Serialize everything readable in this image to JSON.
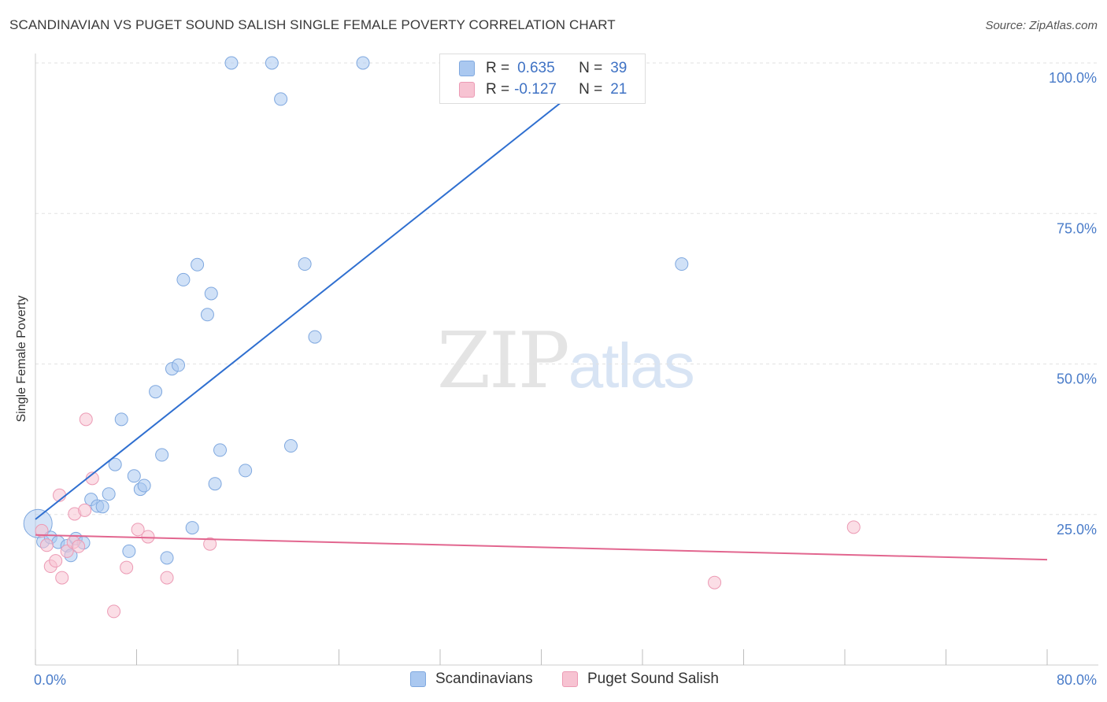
{
  "header": {
    "title": "SCANDINAVIAN VS PUGET SOUND SALISH SINGLE FEMALE POVERTY CORRELATION CHART",
    "source": "Source: ZipAtlas.com"
  },
  "watermark": {
    "zip": "ZIP",
    "atlas": "atlas"
  },
  "legend": {
    "rows": [
      {
        "r_label": "R =",
        "r_value": "0.635",
        "n_label": "N =",
        "n_value": "39",
        "color": "#aac8f0",
        "border": "#7fa8df"
      },
      {
        "r_label": "R =",
        "r_value": "-0.127",
        "n_label": "N =",
        "n_value": "21",
        "color": "#f7c3d2",
        "border": "#ec9ab4"
      }
    ]
  },
  "bottom_legend": {
    "items": [
      {
        "label": "Scandinavians",
        "color": "#aac8f0",
        "border": "#7fa8df"
      },
      {
        "label": "Puget Sound Salish",
        "color": "#f7c3d2",
        "border": "#ec9ab4"
      }
    ]
  },
  "chart_data": {
    "type": "scatter",
    "title": "SCANDINAVIAN VS PUGET SOUND SALISH SINGLE FEMALE POVERTY CORRELATION CHART",
    "xlabel": "",
    "ylabel": "Single Female Poverty",
    "xlim": [
      0,
      80
    ],
    "ylim": [
      0,
      100
    ],
    "x_tick_labels": [
      "0.0%",
      "80.0%"
    ],
    "y_tick_labels": [
      {
        "value": 25,
        "label": "25.0%"
      },
      {
        "value": 50,
        "label": "50.0%"
      },
      {
        "value": 75,
        "label": "75.0%"
      },
      {
        "value": 100,
        "label": "100.0%"
      }
    ],
    "grid": true,
    "series": [
      {
        "name": "Scandinavians",
        "color": "#aac8f0",
        "stroke": "#7fa8df",
        "trend": {
          "x0": 0,
          "y0": 24.2,
          "x1": 45.5,
          "y1": 100,
          "color": "#2f6fd0"
        },
        "points": [
          [
            0.2,
            23.5
          ],
          [
            0.6,
            20.5
          ],
          [
            1.2,
            21.2
          ],
          [
            1.8,
            20.4
          ],
          [
            2.5,
            19.8
          ],
          [
            3.2,
            21.0
          ],
          [
            3.8,
            20.3
          ],
          [
            2.8,
            18.2
          ],
          [
            4.4,
            27.5
          ],
          [
            4.9,
            26.4
          ],
          [
            5.3,
            26.3
          ],
          [
            5.8,
            28.4
          ],
          [
            6.3,
            33.3
          ],
          [
            6.8,
            40.8
          ],
          [
            7.4,
            18.9
          ],
          [
            7.8,
            31.4
          ],
          [
            8.3,
            29.2
          ],
          [
            8.6,
            29.8
          ],
          [
            9.5,
            45.4
          ],
          [
            10.0,
            34.9
          ],
          [
            10.4,
            17.8
          ],
          [
            10.8,
            49.2
          ],
          [
            11.3,
            49.8
          ],
          [
            11.7,
            64.0
          ],
          [
            12.4,
            22.8
          ],
          [
            12.8,
            66.5
          ],
          [
            13.6,
            58.2
          ],
          [
            13.9,
            61.7
          ],
          [
            14.2,
            30.1
          ],
          [
            14.6,
            35.7
          ],
          [
            15.5,
            100.0
          ],
          [
            16.6,
            32.3
          ],
          [
            18.7,
            100.0
          ],
          [
            19.4,
            94.0
          ],
          [
            20.2,
            36.4
          ],
          [
            21.3,
            66.6
          ],
          [
            22.1,
            54.5
          ],
          [
            25.9,
            100.0
          ],
          [
            51.1,
            66.6
          ]
        ]
      },
      {
        "name": "Puget Sound Salish",
        "color": "#f7c3d2",
        "stroke": "#ec9ab4",
        "trend": {
          "x0": 0,
          "y0": 21.6,
          "x1": 80,
          "y1": 17.5,
          "color": "#e2668f"
        },
        "points": [
          [
            0.5,
            22.3
          ],
          [
            0.9,
            19.9
          ],
          [
            1.2,
            16.4
          ],
          [
            1.6,
            17.3
          ],
          [
            1.9,
            28.2
          ],
          [
            2.1,
            14.5
          ],
          [
            2.5,
            18.9
          ],
          [
            3.0,
            20.4
          ],
          [
            3.1,
            25.1
          ],
          [
            3.9,
            25.7
          ],
          [
            4.0,
            40.8
          ],
          [
            4.5,
            31.0
          ],
          [
            6.2,
            8.9
          ],
          [
            7.2,
            16.2
          ],
          [
            8.1,
            22.5
          ],
          [
            8.9,
            21.3
          ],
          [
            10.4,
            14.5
          ],
          [
            13.8,
            20.1
          ],
          [
            53.7,
            13.7
          ],
          [
            64.7,
            22.9
          ],
          [
            3.4,
            19.7
          ]
        ]
      }
    ]
  }
}
